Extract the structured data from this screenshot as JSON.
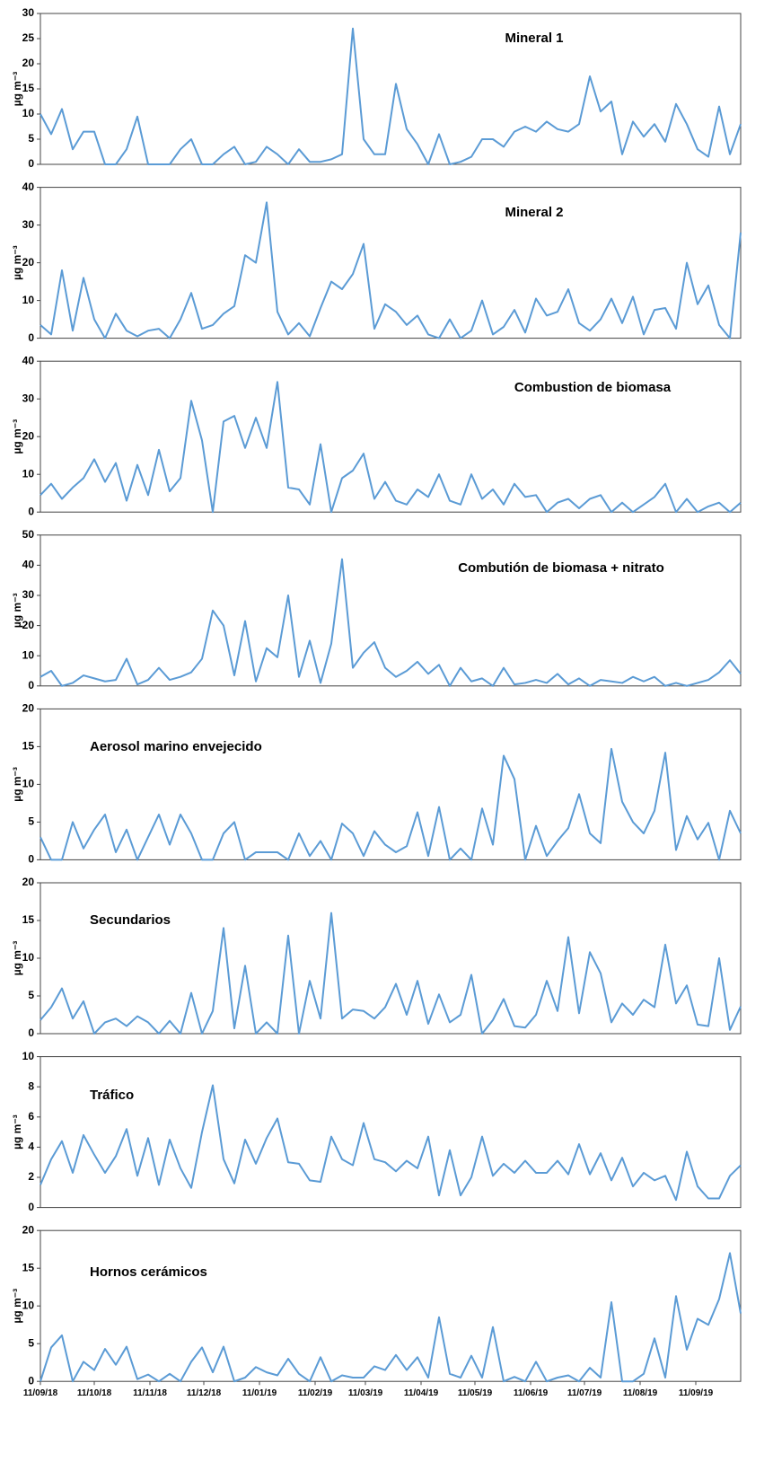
{
  "chart_data": [
    {
      "type": "line",
      "title": "Mineral 1",
      "ylabel": "µg m⁻³",
      "color": "#5b9bd5",
      "xlim": [
        0,
        390
      ],
      "ylim": [
        0,
        30
      ],
      "yticks": [
        0,
        5,
        10,
        15,
        20,
        25,
        30
      ],
      "x": [
        0,
        6,
        12,
        18,
        24,
        30,
        36,
        42,
        48,
        54,
        60,
        66,
        72,
        78,
        84,
        90,
        96,
        102,
        108,
        114,
        120,
        126,
        132,
        138,
        144,
        150,
        156,
        162,
        168,
        174,
        180,
        186,
        192,
        198,
        204,
        210,
        216,
        222,
        228,
        234,
        240,
        246,
        252,
        258,
        264,
        270,
        276,
        282,
        288,
        294,
        300,
        306,
        312,
        318,
        324,
        330,
        336,
        342,
        348,
        354,
        360,
        366,
        372,
        378,
        384,
        390
      ],
      "values": [
        10,
        6,
        11,
        3,
        6.5,
        6.5,
        0,
        0,
        3,
        9.5,
        0,
        0,
        0,
        3,
        5,
        0,
        0,
        2,
        3.5,
        0,
        0.5,
        3.5,
        2,
        0,
        3,
        0.5,
        0.5,
        1,
        2,
        27,
        5,
        2,
        2,
        16,
        7,
        4,
        0,
        6,
        0,
        0.5,
        1.5,
        5,
        5,
        3.5,
        6.5,
        7.5,
        6.5,
        8.5,
        7,
        6.5,
        8,
        17.5,
        10.5,
        12.5,
        2,
        8.5,
        5.5,
        8,
        4.5,
        12,
        8,
        3,
        1.5,
        11.5,
        2,
        8
      ]
    },
    {
      "type": "line",
      "title": "Mineral 2",
      "ylabel": "µg m⁻³",
      "color": "#5b9bd5",
      "xlim": [
        0,
        390
      ],
      "ylim": [
        0,
        40
      ],
      "yticks": [
        0,
        10,
        20,
        30,
        40
      ],
      "x": [
        0,
        6,
        12,
        18,
        24,
        30,
        36,
        42,
        48,
        54,
        60,
        66,
        72,
        78,
        84,
        90,
        96,
        102,
        108,
        114,
        120,
        126,
        132,
        138,
        144,
        150,
        156,
        162,
        168,
        174,
        180,
        186,
        192,
        198,
        204,
        210,
        216,
        222,
        228,
        234,
        240,
        246,
        252,
        258,
        264,
        270,
        276,
        282,
        288,
        294,
        300,
        306,
        312,
        318,
        324,
        330,
        336,
        342,
        348,
        354,
        360,
        366,
        372,
        378,
        384,
        390
      ],
      "values": [
        3.5,
        1,
        18,
        2,
        16,
        5,
        0,
        6.5,
        2,
        0.5,
        2,
        2.5,
        0,
        5,
        12,
        2.5,
        3.5,
        6.5,
        8.5,
        22,
        20,
        36,
        7,
        1,
        4,
        0.5,
        8,
        15,
        13,
        17,
        25,
        2.5,
        9,
        7,
        3.5,
        6,
        1,
        0,
        5,
        0,
        2,
        10,
        1,
        3,
        7.5,
        1.5,
        10.5,
        6,
        7,
        13,
        4,
        2,
        5,
        10.5,
        4,
        11,
        1,
        7.5,
        8,
        2.5,
        20,
        9,
        14,
        3.5,
        0,
        28
      ]
    },
    {
      "type": "line",
      "title": "Combustion de biomasa",
      "ylabel": "µg m⁻³",
      "color": "#5b9bd5",
      "xlim": [
        0,
        390
      ],
      "ylim": [
        0,
        40
      ],
      "yticks": [
        0,
        10,
        20,
        30,
        40
      ],
      "x": [
        0,
        6,
        12,
        18,
        24,
        30,
        36,
        42,
        48,
        54,
        60,
        66,
        72,
        78,
        84,
        90,
        96,
        102,
        108,
        114,
        120,
        126,
        132,
        138,
        144,
        150,
        156,
        162,
        168,
        174,
        180,
        186,
        192,
        198,
        204,
        210,
        216,
        222,
        228,
        234,
        240,
        246,
        252,
        258,
        264,
        270,
        276,
        282,
        288,
        294,
        300,
        306,
        312,
        318,
        324,
        330,
        336,
        342,
        348,
        354,
        360,
        366,
        372,
        378,
        384,
        390
      ],
      "values": [
        4.5,
        7.5,
        3.5,
        6.5,
        9,
        14,
        8,
        13,
        3,
        12.5,
        4.5,
        16.5,
        5.5,
        9,
        29.5,
        19,
        0,
        24,
        25.5,
        17,
        25,
        17,
        34.5,
        6.5,
        6,
        2,
        18,
        0,
        9,
        11,
        15.5,
        3.5,
        8,
        3,
        2,
        6,
        4,
        10,
        3,
        2,
        10,
        3.5,
        6,
        2,
        7.5,
        4,
        4.5,
        0,
        2.5,
        3.5,
        1,
        3.5,
        4.5,
        0,
        2.5,
        0,
        2,
        4,
        7.5,
        0,
        3.5,
        0,
        1.5,
        2.5,
        0,
        2.5
      ]
    },
    {
      "type": "line",
      "title": "Combutión de biomasa + nitrato",
      "ylabel": "µg m⁻³",
      "color": "#5b9bd5",
      "xlim": [
        0,
        390
      ],
      "ylim": [
        0,
        50
      ],
      "yticks": [
        0,
        10,
        20,
        30,
        40,
        50
      ],
      "x": [
        0,
        6,
        12,
        18,
        24,
        30,
        36,
        42,
        48,
        54,
        60,
        66,
        72,
        78,
        84,
        90,
        96,
        102,
        108,
        114,
        120,
        126,
        132,
        138,
        144,
        150,
        156,
        162,
        168,
        174,
        180,
        186,
        192,
        198,
        204,
        210,
        216,
        222,
        228,
        234,
        240,
        246,
        252,
        258,
        264,
        270,
        276,
        282,
        288,
        294,
        300,
        306,
        312,
        318,
        324,
        330,
        336,
        342,
        348,
        354,
        360,
        366,
        372,
        378,
        384,
        390
      ],
      "values": [
        3,
        5,
        0,
        1,
        3.5,
        2.5,
        1.5,
        2,
        9,
        0.5,
        2,
        6,
        2,
        3,
        4.5,
        9,
        25,
        20,
        3.5,
        21.5,
        1.5,
        12.5,
        9.5,
        30,
        3,
        15,
        1,
        14,
        42,
        6,
        11,
        14.5,
        6,
        3,
        5,
        8,
        4,
        7,
        0,
        6,
        1.5,
        2.5,
        0,
        6,
        0.5,
        1,
        2,
        1,
        4,
        0.5,
        2.5,
        0,
        2,
        1.5,
        1,
        3,
        1.5,
        3,
        0,
        1,
        0,
        1,
        2,
        4.5,
        8.5,
        4
      ]
    },
    {
      "type": "line",
      "title": "Aerosol marino envejecido",
      "ylabel": "µg m⁻³",
      "color": "#5b9bd5",
      "xlim": [
        0,
        390
      ],
      "ylim": [
        0,
        20
      ],
      "yticks": [
        0,
        5,
        10,
        15,
        20
      ],
      "x": [
        0,
        6,
        12,
        18,
        24,
        30,
        36,
        42,
        48,
        54,
        60,
        66,
        72,
        78,
        84,
        90,
        96,
        102,
        108,
        114,
        120,
        126,
        132,
        138,
        144,
        150,
        156,
        162,
        168,
        174,
        180,
        186,
        192,
        198,
        204,
        210,
        216,
        222,
        228,
        234,
        240,
        246,
        252,
        258,
        264,
        270,
        276,
        282,
        288,
        294,
        300,
        306,
        312,
        318,
        324,
        330,
        336,
        342,
        348,
        354,
        360,
        366,
        372,
        378,
        384,
        390
      ],
      "values": [
        3,
        0,
        0,
        5,
        1.5,
        4,
        6,
        1,
        4,
        0,
        3,
        6,
        2,
        6,
        3.5,
        0,
        0,
        3.5,
        5,
        0,
        1,
        1,
        1,
        0,
        3.5,
        0.5,
        2.5,
        0,
        4.8,
        3.5,
        0.5,
        3.8,
        2,
        1,
        1.8,
        6.3,
        0.5,
        7,
        0,
        1.5,
        0,
        6.8,
        2,
        13.8,
        10.7,
        0,
        4.5,
        0.5,
        2.5,
        4.2,
        8.7,
        3.5,
        2.2,
        14.7,
        7.7,
        5,
        3.5,
        6.5,
        14.2,
        1.3,
        5.8,
        2.7,
        4.9,
        0,
        6.5,
        3.5
      ]
    },
    {
      "type": "line",
      "title": "Secundarios",
      "ylabel": "µg m⁻³",
      "color": "#5b9bd5",
      "xlim": [
        0,
        390
      ],
      "ylim": [
        0,
        20
      ],
      "yticks": [
        0,
        5,
        10,
        15,
        20
      ],
      "x": [
        0,
        6,
        12,
        18,
        24,
        30,
        36,
        42,
        48,
        54,
        60,
        66,
        72,
        78,
        84,
        90,
        96,
        102,
        108,
        114,
        120,
        126,
        132,
        138,
        144,
        150,
        156,
        162,
        168,
        174,
        180,
        186,
        192,
        198,
        204,
        210,
        216,
        222,
        228,
        234,
        240,
        246,
        252,
        258,
        264,
        270,
        276,
        282,
        288,
        294,
        300,
        306,
        312,
        318,
        324,
        330,
        336,
        342,
        348,
        354,
        360,
        366,
        372,
        378,
        384,
        390
      ],
      "values": [
        1.8,
        3.5,
        6,
        2,
        4.3,
        0,
        1.5,
        2,
        1,
        2.3,
        1.5,
        0,
        1.7,
        0,
        5.4,
        0,
        3,
        14,
        0.7,
        9,
        0,
        1.5,
        0,
        13,
        0,
        7,
        2,
        16,
        2,
        3.2,
        3,
        2,
        3.5,
        6.6,
        2.5,
        7,
        1.3,
        5.2,
        1.5,
        2.5,
        7.8,
        0,
        1.8,
        4.6,
        1,
        0.8,
        2.5,
        7,
        3,
        12.8,
        2.7,
        10.8,
        8,
        1.5,
        4,
        2.5,
        4.5,
        3.5,
        11.8,
        4,
        6.4,
        1.2,
        1,
        10,
        0.5,
        3.6
      ]
    },
    {
      "type": "line",
      "title": "Tráfico",
      "ylabel": "µg m⁻³",
      "color": "#5b9bd5",
      "xlim": [
        0,
        390
      ],
      "ylim": [
        0,
        10
      ],
      "yticks": [
        0,
        2,
        4,
        6,
        8,
        10
      ],
      "x": [
        0,
        6,
        12,
        18,
        24,
        30,
        36,
        42,
        48,
        54,
        60,
        66,
        72,
        78,
        84,
        90,
        96,
        102,
        108,
        114,
        120,
        126,
        132,
        138,
        144,
        150,
        156,
        162,
        168,
        174,
        180,
        186,
        192,
        198,
        204,
        210,
        216,
        222,
        228,
        234,
        240,
        246,
        252,
        258,
        264,
        270,
        276,
        282,
        288,
        294,
        300,
        306,
        312,
        318,
        324,
        330,
        336,
        342,
        348,
        354,
        360,
        366,
        372,
        378,
        384,
        390
      ],
      "values": [
        1.5,
        3.2,
        4.4,
        2.3,
        4.8,
        3.5,
        2.3,
        3.4,
        5.2,
        2.1,
        4.6,
        1.5,
        4.5,
        2.6,
        1.3,
        5,
        8.1,
        3.2,
        1.6,
        4.5,
        2.9,
        4.6,
        5.9,
        3,
        2.9,
        1.8,
        1.7,
        4.7,
        3.2,
        2.8,
        5.6,
        3.2,
        3,
        2.4,
        3.1,
        2.6,
        4.7,
        0.8,
        3.8,
        0.8,
        2,
        4.7,
        2.1,
        2.9,
        2.3,
        3.1,
        2.3,
        2.3,
        3.1,
        2.2,
        4.2,
        2.2,
        3.6,
        1.8,
        3.3,
        1.4,
        2.3,
        1.8,
        2.1,
        0.5,
        3.7,
        1.4,
        0.6,
        0.6,
        2.1,
        2.8
      ]
    },
    {
      "type": "line",
      "title": "Hornos cerámicos",
      "ylabel": "µg m⁻³",
      "color": "#5b9bd5",
      "xlim": [
        0,
        390
      ],
      "ylim": [
        0,
        20
      ],
      "yticks": [
        0,
        5,
        10,
        15,
        20
      ],
      "xticks": [
        {
          "value": 0,
          "label": "11/09/18"
        },
        {
          "value": 30,
          "label": "11/10/18"
        },
        {
          "value": 61,
          "label": "11/11/18"
        },
        {
          "value": 91,
          "label": "11/12/18"
        },
        {
          "value": 122,
          "label": "11/01/19"
        },
        {
          "value": 153,
          "label": "11/02/19"
        },
        {
          "value": 181,
          "label": "11/03/19"
        },
        {
          "value": 212,
          "label": "11/04/19"
        },
        {
          "value": 242,
          "label": "11/05/19"
        },
        {
          "value": 273,
          "label": "11/06/19"
        },
        {
          "value": 303,
          "label": "11/07/19"
        },
        {
          "value": 334,
          "label": "11/08/19"
        },
        {
          "value": 365,
          "label": "11/09/19"
        }
      ],
      "x": [
        0,
        6,
        12,
        18,
        24,
        30,
        36,
        42,
        48,
        54,
        60,
        66,
        72,
        78,
        84,
        90,
        96,
        102,
        108,
        114,
        120,
        126,
        132,
        138,
        144,
        150,
        156,
        162,
        168,
        174,
        180,
        186,
        192,
        198,
        204,
        210,
        216,
        222,
        228,
        234,
        240,
        246,
        252,
        258,
        264,
        270,
        276,
        282,
        288,
        294,
        300,
        306,
        312,
        318,
        324,
        330,
        336,
        342,
        348,
        354,
        360,
        366,
        372,
        378,
        384,
        390
      ],
      "values": [
        0,
        4.5,
        6.1,
        0,
        2.6,
        1.5,
        4.3,
        2.2,
        4.6,
        0.3,
        0.9,
        0,
        1,
        0,
        2.6,
        4.5,
        1.2,
        4.6,
        0,
        0.5,
        1.9,
        1.2,
        0.8,
        3,
        1,
        0,
        3.2,
        0,
        0.8,
        0.5,
        0.5,
        2,
        1.5,
        3.5,
        1.5,
        3.2,
        0.5,
        8.5,
        1,
        0.5,
        3.4,
        0.5,
        7.2,
        0,
        0.6,
        0,
        2.6,
        0,
        0.5,
        0.8,
        0,
        1.8,
        0.5,
        10.5,
        0,
        0,
        1,
        5.7,
        0.5,
        11.3,
        4.2,
        8.3,
        7.5,
        10.9,
        17,
        9
      ]
    }
  ]
}
